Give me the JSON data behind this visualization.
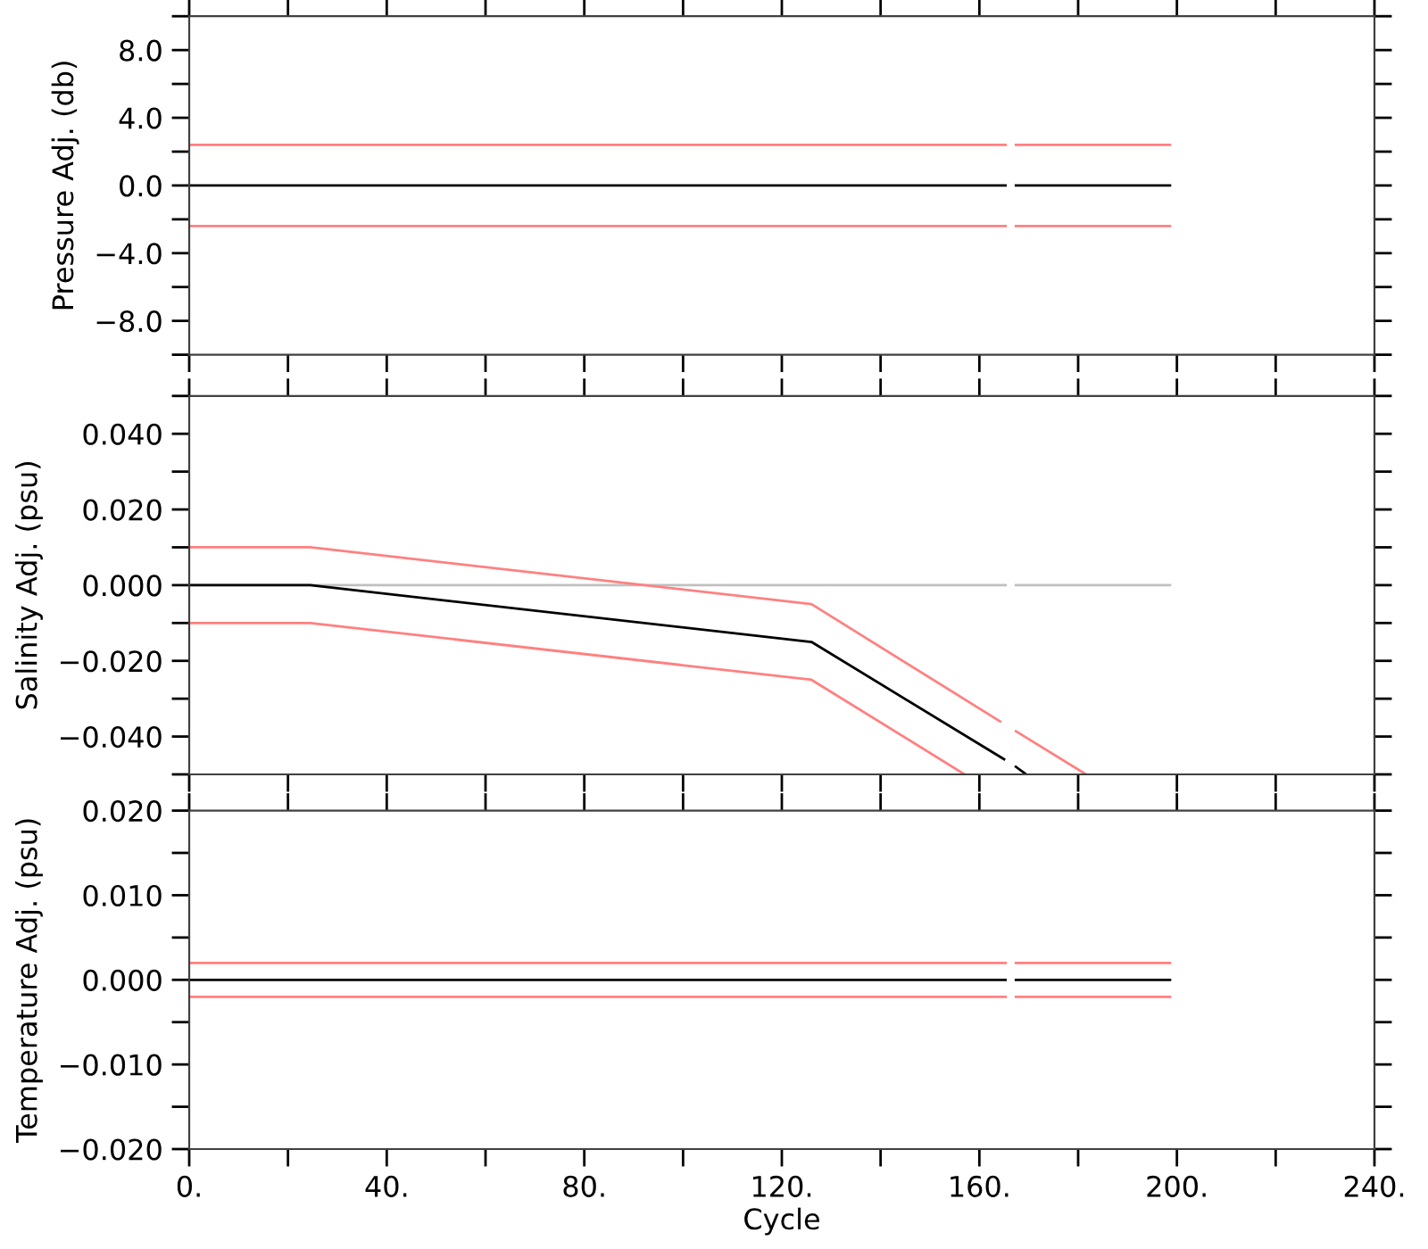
{
  "chart_data": [
    {
      "type": "line",
      "ylabel": "Pressure Adj. (db)",
      "tick_labels": "y",
      "xlim": [
        0,
        240
      ],
      "ylim": [
        -10,
        10
      ],
      "xticks": [
        {
          "value": 0,
          "label": null
        },
        {
          "value": 20,
          "label": null
        },
        {
          "value": 40,
          "label": null
        },
        {
          "value": 60,
          "label": null
        },
        {
          "value": 80,
          "label": null
        },
        {
          "value": 100,
          "label": null
        },
        {
          "value": 120,
          "label": null
        },
        {
          "value": 140,
          "label": null
        },
        {
          "value": 160,
          "label": null
        },
        {
          "value": 180,
          "label": null
        },
        {
          "value": 200,
          "label": null
        },
        {
          "value": 220,
          "label": null
        },
        {
          "value": 240,
          "label": null
        }
      ],
      "yticks": [
        {
          "value": -10,
          "label": null
        },
        {
          "value": -8,
          "label": "−8.0"
        },
        {
          "value": -6,
          "label": null
        },
        {
          "value": -4,
          "label": "−4.0"
        },
        {
          "value": -2,
          "label": null
        },
        {
          "value": 0,
          "label": "0.0"
        },
        {
          "value": 2,
          "label": null
        },
        {
          "value": 4,
          "label": "4.0"
        },
        {
          "value": 6,
          "label": null
        },
        {
          "value": 8,
          "label": "8.0"
        },
        {
          "value": 10,
          "label": null
        }
      ],
      "series": [
        {
          "color": "#ff8080",
          "x": [
            0,
            165.3,
            166.3,
            167.4,
            198.6
          ],
          "values": [
            2.4,
            2.4,
            null,
            2.4,
            2.4
          ]
        },
        {
          "color": "#ff8080",
          "x": [
            0,
            165.3,
            166.3,
            167.4,
            198.6
          ],
          "values": [
            -2.4,
            -2.4,
            null,
            -2.4,
            -2.4
          ]
        },
        {
          "color": "#000000",
          "x": [
            0,
            165.3,
            166.3,
            167.4,
            198.6
          ],
          "values": [
            0,
            0,
            null,
            0,
            0
          ]
        }
      ]
    },
    {
      "type": "line",
      "ylabel": "Salinity Adj. (psu)",
      "tick_labels": "y",
      "xlim": [
        0,
        240
      ],
      "ylim": [
        -0.05,
        0.05
      ],
      "xticks": [
        {
          "value": 0,
          "label": null
        },
        {
          "value": 20,
          "label": null
        },
        {
          "value": 40,
          "label": null
        },
        {
          "value": 60,
          "label": null
        },
        {
          "value": 80,
          "label": null
        },
        {
          "value": 100,
          "label": null
        },
        {
          "value": 120,
          "label": null
        },
        {
          "value": 140,
          "label": null
        },
        {
          "value": 160,
          "label": null
        },
        {
          "value": 180,
          "label": null
        },
        {
          "value": 200,
          "label": null
        },
        {
          "value": 220,
          "label": null
        },
        {
          "value": 240,
          "label": null
        }
      ],
      "yticks": [
        {
          "value": -0.05,
          "label": null
        },
        {
          "value": -0.04,
          "label": "−0.040"
        },
        {
          "value": -0.03,
          "label": null
        },
        {
          "value": -0.02,
          "label": "−0.020"
        },
        {
          "value": -0.01,
          "label": null
        },
        {
          "value": 0,
          "label": "0.000"
        },
        {
          "value": 0.01,
          "label": null
        },
        {
          "value": 0.02,
          "label": "0.020"
        },
        {
          "value": 0.03,
          "label": null
        },
        {
          "value": 0.04,
          "label": "0.040"
        },
        {
          "value": 0.05,
          "label": null
        }
      ],
      "series": [
        {
          "color": "#c0c0c0",
          "x": [
            0,
            165.3,
            166.3,
            167.4,
            198.6
          ],
          "values": [
            0,
            0,
            null,
            0,
            0
          ]
        },
        {
          "color": "#ff8080",
          "x": [
            0,
            24.5,
            126,
            164.2,
            165.8,
            167.4,
            181.6
          ],
          "values": [
            0.01,
            0.01,
            -0.005,
            -0.036,
            null,
            -0.0386,
            -0.05
          ]
        },
        {
          "color": "#ff8080",
          "x": [
            0,
            24.5,
            126,
            157
          ],
          "values": [
            -0.01,
            -0.01,
            -0.025,
            -0.05
          ]
        },
        {
          "color": "#000000",
          "x": [
            0,
            24.5,
            126,
            165,
            166.2,
            167.4,
            169.5
          ],
          "values": [
            0,
            0,
            -0.015,
            -0.046,
            null,
            -0.048,
            -0.05
          ]
        }
      ]
    },
    {
      "type": "line",
      "ylabel": "Temperature Adj. (psu)",
      "xlabel": "Cycle",
      "xlim": [
        0,
        240
      ],
      "ylim": [
        -0.02,
        0.02
      ],
      "xticks": [
        {
          "value": 0,
          "label": "0."
        },
        {
          "value": 20,
          "label": null
        },
        {
          "value": 40,
          "label": "40."
        },
        {
          "value": 60,
          "label": null
        },
        {
          "value": 80,
          "label": "80."
        },
        {
          "value": 100,
          "label": null
        },
        {
          "value": 120,
          "label": "120."
        },
        {
          "value": 140,
          "label": null
        },
        {
          "value": 160,
          "label": "160."
        },
        {
          "value": 180,
          "label": null
        },
        {
          "value": 200,
          "label": "200."
        },
        {
          "value": 220,
          "label": null
        },
        {
          "value": 240,
          "label": "240."
        }
      ],
      "yticks": [
        {
          "value": -0.02,
          "label": "−0.020"
        },
        {
          "value": -0.015,
          "label": null
        },
        {
          "value": -0.01,
          "label": "−0.010"
        },
        {
          "value": -0.005,
          "label": null
        },
        {
          "value": 0,
          "label": "0.000"
        },
        {
          "value": 0.005,
          "label": null
        },
        {
          "value": 0.01,
          "label": "0.010"
        },
        {
          "value": 0.015,
          "label": null
        },
        {
          "value": 0.02,
          "label": "0.020"
        }
      ],
      "series": [
        {
          "color": "#ff8080",
          "x": [
            0,
            165.3,
            166.3,
            167.4,
            198.6
          ],
          "values": [
            0.002,
            0.002,
            null,
            0.002,
            0.002
          ]
        },
        {
          "color": "#ff8080",
          "x": [
            0,
            165.3,
            166.3,
            167.4,
            198.6
          ],
          "values": [
            -0.002,
            -0.002,
            null,
            -0.002,
            -0.002
          ]
        },
        {
          "color": "#000000",
          "x": [
            0,
            165.3,
            166.3,
            167.4,
            198.6
          ],
          "values": [
            0,
            0,
            null,
            0,
            0
          ]
        }
      ]
    }
  ]
}
